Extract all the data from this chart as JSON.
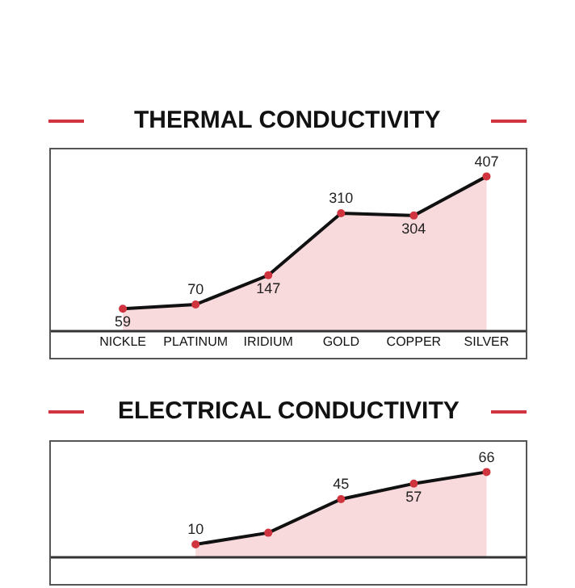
{
  "chart_data": [
    {
      "type": "area",
      "title": "THERMAL CONDUCTIVITY",
      "categories": [
        "NICKLE",
        "PLATINUM",
        "IRIDIUM",
        "GOLD",
        "COPPER",
        "SILVER"
      ],
      "series": [
        {
          "color": "#111111",
          "values": [
            59,
            70,
            147,
            310,
            304,
            407
          ],
          "value_labels": [
            "59",
            "70",
            "147",
            "310",
            "304",
            "407"
          ]
        }
      ],
      "ylim": [
        0,
        480
      ],
      "tick_labels": "x",
      "marker": "circle"
    },
    {
      "type": "area",
      "title": "ELECTRICAL CONDUCTIVITY",
      "categories": [
        null,
        null,
        null,
        null,
        null,
        null
      ],
      "series": [
        {
          "color": "#111111",
          "values": [
            null,
            10,
            19,
            45,
            57,
            66
          ],
          "value_labels": [
            null,
            "10",
            null,
            "45",
            "57",
            "66"
          ]
        }
      ],
      "ylim": [
        0,
        90
      ],
      "tick_labels": "x",
      "marker": "circle"
    }
  ]
}
